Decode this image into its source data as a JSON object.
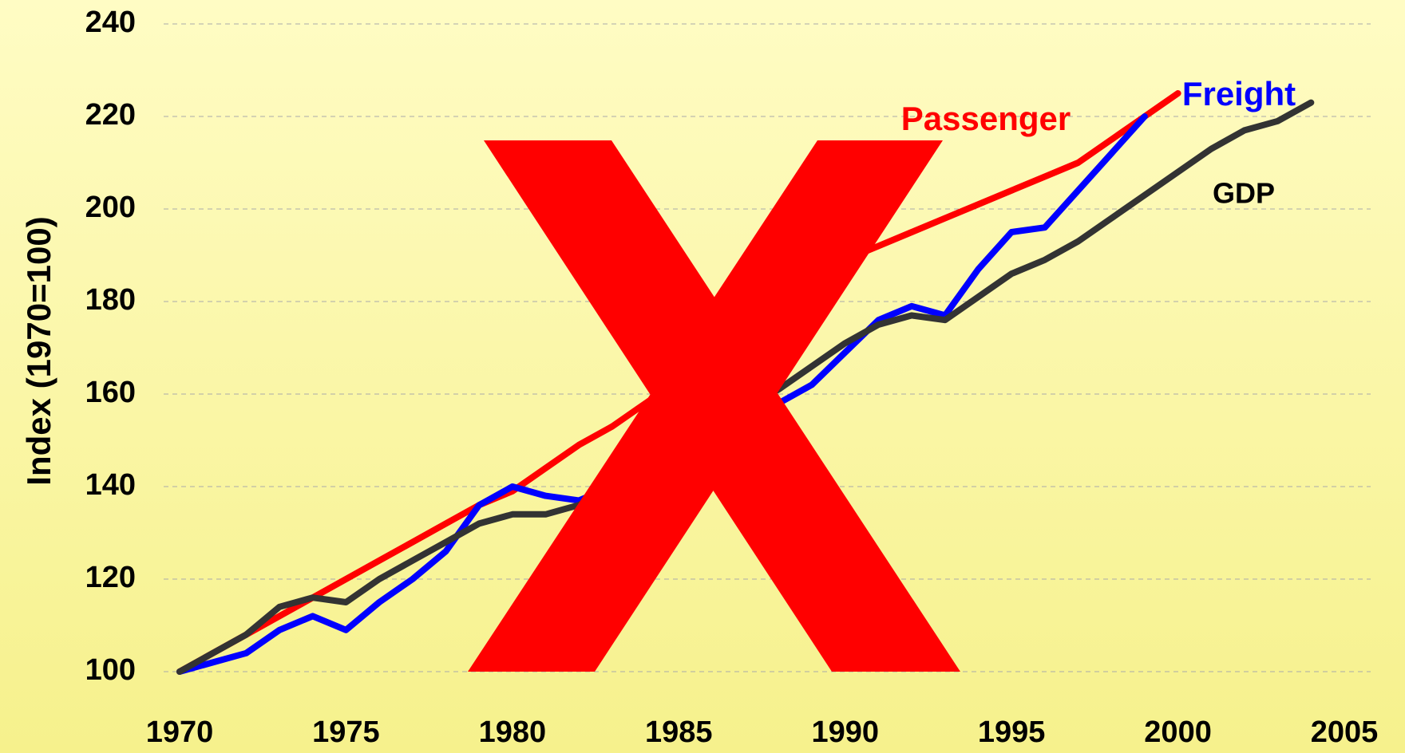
{
  "chart_data": {
    "type": "line",
    "y_label": "Index (1970=100)",
    "x": [
      1970,
      1971,
      1972,
      1973,
      1974,
      1975,
      1976,
      1977,
      1978,
      1979,
      1980,
      1981,
      1982,
      1983,
      1984,
      1985,
      1986,
      1987,
      1988,
      1989,
      1990,
      1991,
      1992,
      1993,
      1994,
      1995,
      1996,
      1997,
      1998,
      1999,
      2000,
      2001,
      2002,
      2003,
      2004
    ],
    "series": [
      {
        "name": "Passenger",
        "color": "#ff0000",
        "values": [
          100,
          104,
          108,
          112,
          116,
          120,
          124,
          128,
          132,
          136,
          139,
          144,
          149,
          153,
          158,
          163,
          168,
          173,
          178,
          184,
          189,
          192,
          195,
          198,
          201,
          204,
          207,
          210,
          215,
          220,
          225,
          null,
          null,
          null,
          null
        ]
      },
      {
        "name": "Freight",
        "color": "#0000ff",
        "values": [
          100,
          102,
          104,
          109,
          112,
          109,
          115,
          120,
          126,
          136,
          140,
          138,
          137,
          140,
          145,
          148,
          152,
          155,
          158,
          162,
          169,
          176,
          179,
          177,
          187,
          195,
          196,
          204,
          212,
          220,
          null,
          null,
          null,
          null,
          null
        ]
      },
      {
        "name": "GDP",
        "color": "#333333",
        "values": [
          100,
          104,
          108,
          114,
          116,
          115,
          120,
          124,
          128,
          132,
          134,
          134,
          136,
          140,
          146,
          150,
          154,
          157,
          161,
          166,
          171,
          175,
          177,
          176,
          181,
          186,
          189,
          193,
          198,
          203,
          208,
          213,
          217,
          219,
          223
        ]
      }
    ],
    "xlim": [
      1970,
      2005
    ],
    "xticks": [
      1970,
      1975,
      1980,
      1985,
      1990,
      1995,
      2000,
      2005
    ],
    "ylim": [
      100,
      240
    ],
    "yticks": [
      100,
      120,
      140,
      160,
      180,
      200,
      220,
      240
    ],
    "grid": true
  }
}
